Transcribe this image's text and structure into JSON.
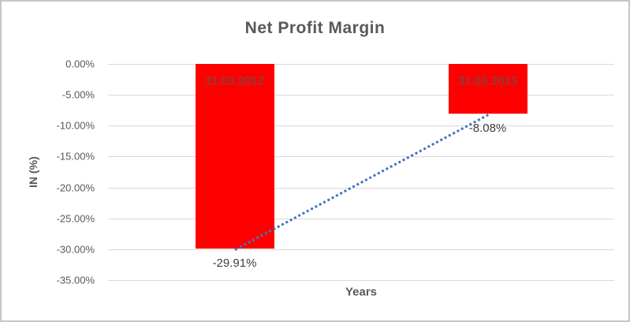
{
  "chart_data": {
    "type": "bar",
    "title": "Net Profit Margin",
    "xlabel": "Years",
    "ylabel": "IN (%)",
    "categories": [
      "31.03.2012",
      "31.03.2013"
    ],
    "values": [
      -29.91,
      -8.08
    ],
    "value_labels": [
      "-29.91%",
      "-8.08%"
    ],
    "ylim": [
      -35,
      0
    ],
    "ytick_step": 5,
    "ytick_labels": [
      "0.00%",
      "-5.00%",
      "-10.00%",
      "-15.00%",
      "-20.00%",
      "-25.00%",
      "-30.00%",
      "-35.00%"
    ],
    "grid": true,
    "legend": "none",
    "bar_color": "#FF0000",
    "text_color": "#595959",
    "value_label_color": "#404040",
    "gridline_color": "#D9D9D9",
    "trendline": {
      "type": "linear",
      "style": "dotted",
      "color": "#4472C4",
      "points": [
        -29.91,
        -8.08
      ]
    }
  }
}
